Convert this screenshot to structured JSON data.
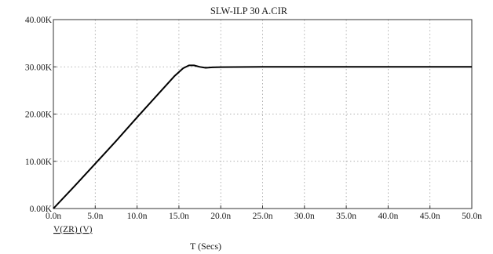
{
  "chart_data": {
    "type": "line",
    "title": "SLW-ILP 30 A.CIR",
    "xlabel": "T (Secs)",
    "ylabel": "",
    "x_tick_labels": [
      "0.0n",
      "5.0n",
      "10.0n",
      "15.0n",
      "20.0n",
      "25.0n",
      "30.0n",
      "35.0n",
      "40.0n",
      "45.0n",
      "50.0n"
    ],
    "y_tick_labels": [
      "0.00K",
      "10.00K",
      "20.00K",
      "30.00K",
      "40.00K"
    ],
    "x_ticks": [
      0,
      5,
      10,
      15,
      20,
      25,
      30,
      35,
      40,
      45,
      50
    ],
    "y_ticks": [
      0,
      10000,
      20000,
      30000,
      40000
    ],
    "xlim": [
      0,
      50
    ],
    "ylim": [
      0,
      40000
    ],
    "grid": true,
    "series": [
      {
        "name": "V(ZR) (V)",
        "color": "#000000",
        "x": [
          0,
          2.5,
          5,
          7.5,
          10,
          12.5,
          14.5,
          15.5,
          16.2,
          16.8,
          17.5,
          18.2,
          19,
          20,
          25,
          30,
          35,
          40,
          45,
          50
        ],
        "y": [
          0,
          4700,
          9500,
          14300,
          19300,
          24200,
          28100,
          29700,
          30300,
          30300,
          30000,
          29800,
          29900,
          29950,
          30000,
          30000,
          30000,
          30000,
          30000,
          30000
        ]
      }
    ]
  }
}
